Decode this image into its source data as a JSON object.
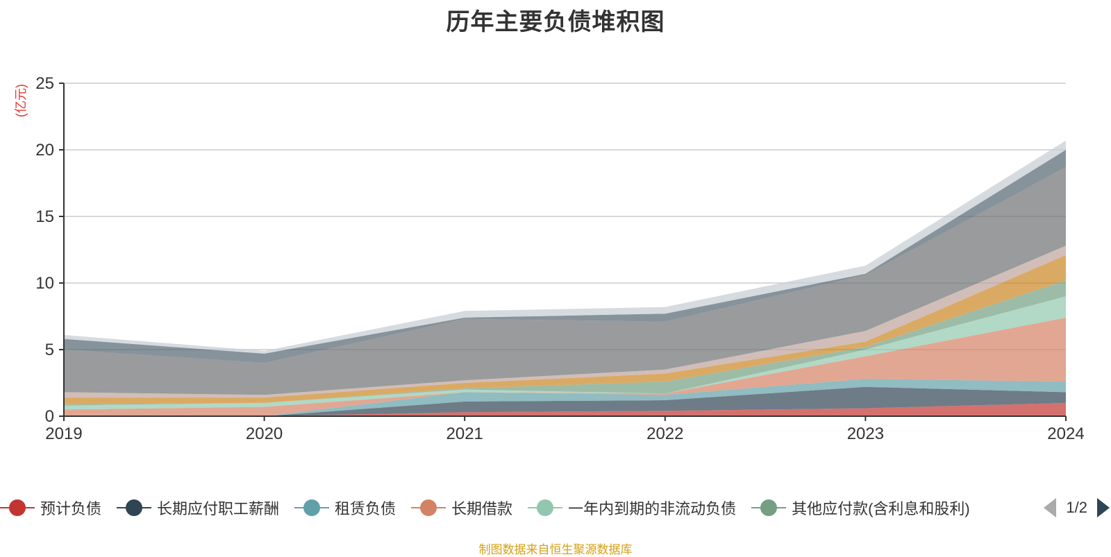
{
  "chart_data": {
    "type": "area",
    "stacked": true,
    "title": "历年主要负债堆积图",
    "ylabel": "(亿元)",
    "xlabel": "",
    "x": [
      "2019",
      "2020",
      "2021",
      "2022",
      "2023",
      "2024"
    ],
    "ylim": [
      0,
      25
    ],
    "yticks": [
      0,
      5,
      10,
      15,
      20,
      25
    ],
    "grid": true,
    "legend_position": "bottom",
    "legend_page": "1/2",
    "series": [
      {
        "name": "预计负债",
        "color": "#c23531",
        "values": [
          0.0,
          0.0,
          0.3,
          0.4,
          0.6,
          1.0
        ]
      },
      {
        "name": "长期应付职工薪酬",
        "color": "#2f4554",
        "values": [
          0.0,
          0.0,
          0.8,
          0.8,
          1.6,
          0.8
        ]
      },
      {
        "name": "租赁负债",
        "color": "#61a0a8",
        "values": [
          0.0,
          0.0,
          0.7,
          0.4,
          0.6,
          0.8
        ]
      },
      {
        "name": "长期借款",
        "color": "#d48265",
        "values": [
          0.5,
          0.7,
          0.0,
          0.1,
          1.7,
          4.8
        ]
      },
      {
        "name": "一年内到期的非流动负债",
        "color": "#91c7ae",
        "values": [
          0.3,
          0.3,
          0.2,
          0.0,
          0.5,
          1.6
        ]
      },
      {
        "name": "其他应付款(含利息和股利)",
        "color": "#749f83",
        "values": [
          0.1,
          0.0,
          0.1,
          0.9,
          0.2,
          1.2
        ]
      },
      {
        "series_index": 7,
        "color": "#ca8622",
        "values": [
          0.5,
          0.4,
          0.4,
          0.6,
          0.4,
          1.9
        ]
      },
      {
        "series_index": 8,
        "color": "#bda29a",
        "values": [
          0.4,
          0.2,
          0.2,
          0.3,
          0.8,
          0.7
        ]
      },
      {
        "series_index": 9,
        "color": "#6e7074",
        "values": [
          3.2,
          2.4,
          4.6,
          3.6,
          4.2,
          5.9
        ]
      },
      {
        "series_index": 10,
        "color": "#546570",
        "values": [
          0.8,
          0.7,
          0.1,
          0.6,
          0.1,
          1.3
        ]
      },
      {
        "series_index": 11,
        "color": "#c4ccd3",
        "values": [
          0.3,
          0.2,
          0.5,
          0.5,
          0.6,
          0.7
        ]
      }
    ]
  },
  "source_note": "制图数据来自恒生聚源数据库"
}
